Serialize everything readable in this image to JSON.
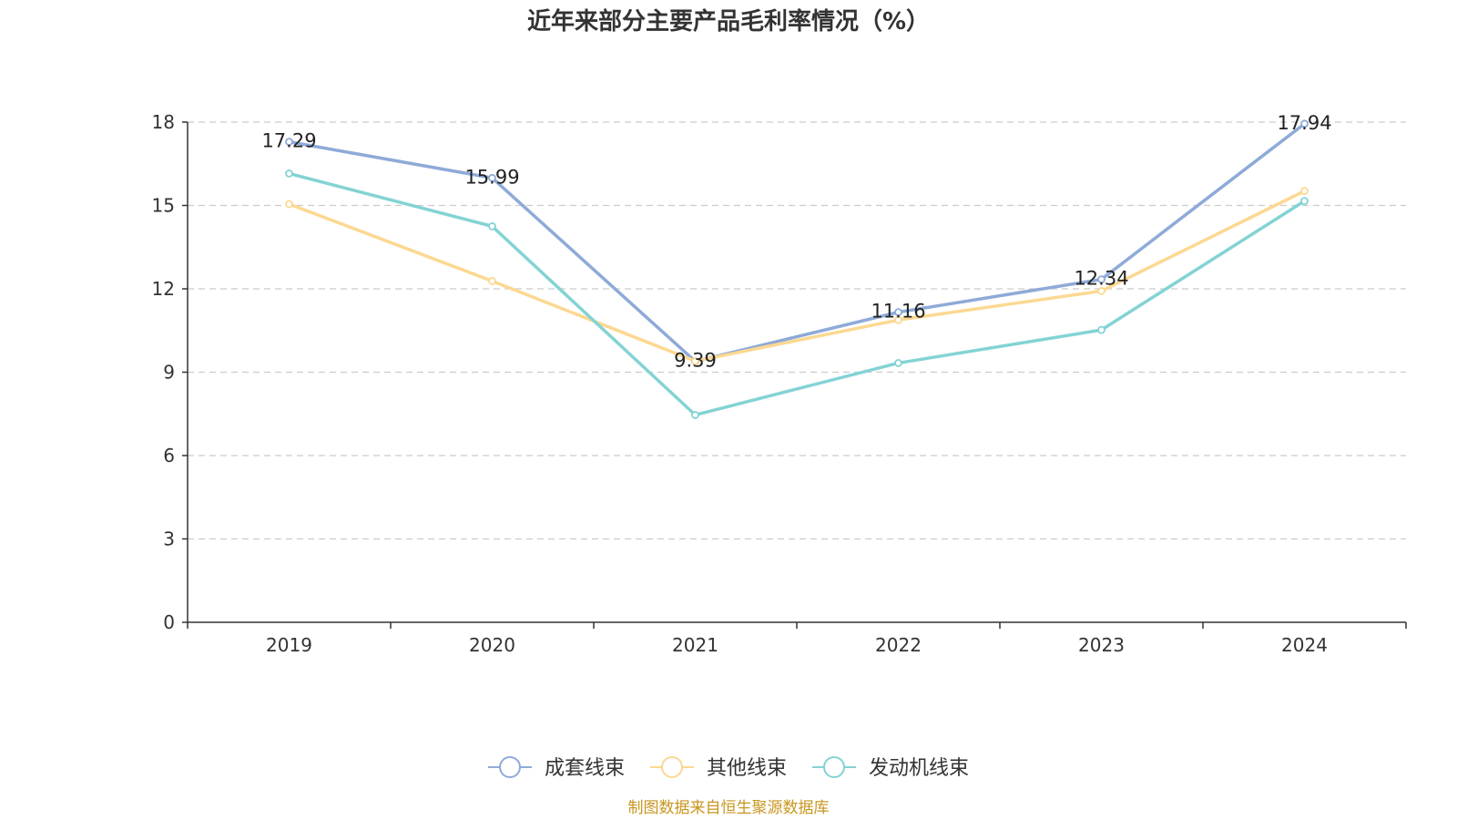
{
  "chart_data": {
    "type": "line",
    "title": "近年来部分主要产品毛利率情况（%）",
    "categories": [
      "2019",
      "2020",
      "2021",
      "2022",
      "2023",
      "2024"
    ],
    "ylim": [
      0,
      18
    ],
    "yticks": [
      0,
      3,
      6,
      9,
      12,
      15,
      18
    ],
    "grid": true,
    "legend_position": "bottom",
    "series": [
      {
        "name": "成套线束",
        "color": "#8eaad8",
        "values": [
          17.29,
          15.99,
          9.39,
          11.16,
          12.34,
          17.94
        ],
        "labels": [
          "17.29",
          "15.99",
          "9.39",
          "11.16",
          "12.34",
          "17.94"
        ]
      },
      {
        "name": "其他线束",
        "color": "#fcd891",
        "values": [
          15.05,
          12.28,
          9.4,
          10.88,
          11.92,
          15.52
        ]
      },
      {
        "name": "发动机线束",
        "color": "#84d3d4",
        "values": [
          16.15,
          14.25,
          7.46,
          9.33,
          10.52,
          15.16
        ]
      }
    ]
  },
  "source": "制图数据来自恒生聚源数据库"
}
